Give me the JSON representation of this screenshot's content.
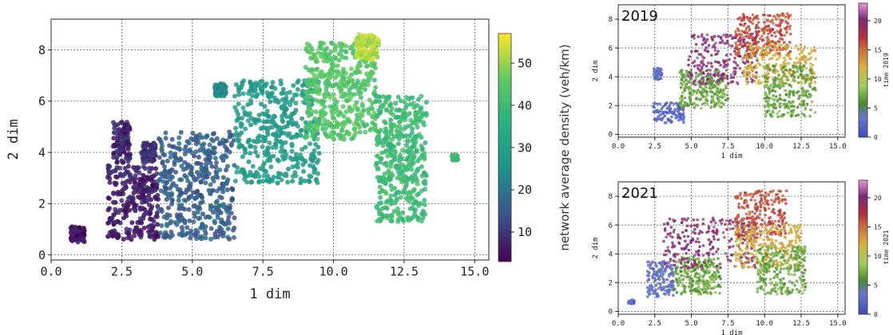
{
  "chart_data": [
    {
      "type": "scatter",
      "xlabel": "1 dim",
      "ylabel": "2 dim",
      "xlim": [
        0.0,
        15.5
      ],
      "ylim": [
        -0.2,
        9.2
      ],
      "xticks": [
        "0.0",
        "2.5",
        "5.0",
        "7.5",
        "10.0",
        "12.5",
        "15.0"
      ],
      "yticks": [
        "0",
        "2",
        "4",
        "6",
        "8"
      ],
      "grid": true,
      "colorbar": {
        "label": "network average density (veh/km)",
        "range": [
          3,
          57
        ],
        "ticks": [
          "10",
          "20",
          "30",
          "40",
          "50"
        ],
        "colormap": "viridis"
      },
      "clusters": [
        {
          "x": [
            0.7,
            1.2
          ],
          "y": [
            0.5,
            1.1
          ],
          "value": 5
        },
        {
          "x": [
            2.0,
            3.8
          ],
          "y": [
            0.6,
            3.5
          ],
          "value": 7
        },
        {
          "x": [
            2.2,
            2.8
          ],
          "y": [
            3.6,
            5.2
          ],
          "value": 8
        },
        {
          "x": [
            3.2,
            3.7
          ],
          "y": [
            3.6,
            4.4
          ],
          "value": 9
        },
        {
          "x": [
            3.8,
            6.5
          ],
          "y": [
            0.6,
            4.8
          ],
          "value": 16
        },
        {
          "x": [
            5.8,
            6.2
          ],
          "y": [
            6.2,
            6.7
          ],
          "value": 24
        },
        {
          "x": [
            6.5,
            9.5
          ],
          "y": [
            2.8,
            6.8
          ],
          "value": 28
        },
        {
          "x": [
            9.0,
            11.5
          ],
          "y": [
            4.5,
            8.3
          ],
          "value": 44
        },
        {
          "x": [
            10.8,
            11.6
          ],
          "y": [
            7.6,
            8.6
          ],
          "value": 52
        },
        {
          "x": [
            11.5,
            13.3
          ],
          "y": [
            1.3,
            6.2
          ],
          "value": 40
        },
        {
          "x": [
            14.2,
            14.4
          ],
          "y": [
            3.7,
            3.9
          ],
          "value": 40
        }
      ]
    },
    {
      "type": "scatter",
      "title": "2019",
      "xlabel": "1 dim",
      "ylabel": "2 dim",
      "xlim": [
        0.0,
        15.5
      ],
      "ylim": [
        -0.2,
        9.0
      ],
      "xticks": [
        "0.0",
        "2.5",
        "5.0",
        "7.5",
        "10.0",
        "12.5",
        "15.0"
      ],
      "yticks": [
        "0",
        "2",
        "4",
        "6",
        "8"
      ],
      "grid": true,
      "colorbar": {
        "label": "time 2019",
        "range": [
          0,
          23
        ],
        "ticks": [
          "0",
          "5",
          "10",
          "15",
          "20"
        ]
      },
      "clusters": [
        {
          "x": [
            2.4,
            4.5
          ],
          "y": [
            0.8,
            2.2
          ],
          "value": 2
        },
        {
          "x": [
            2.4,
            3.0
          ],
          "y": [
            3.8,
            4.6
          ],
          "value": 3
        },
        {
          "x": [
            4.2,
            7.5
          ],
          "y": [
            1.8,
            4.5
          ],
          "value": 7
        },
        {
          "x": [
            4.8,
            9.5
          ],
          "y": [
            3.5,
            7.0
          ],
          "value": 20
        },
        {
          "x": [
            8.0,
            11.8
          ],
          "y": [
            5.5,
            8.4
          ],
          "value": 16
        },
        {
          "x": [
            8.5,
            13.5
          ],
          "y": [
            3.5,
            6.3
          ],
          "value": 12
        },
        {
          "x": [
            10.0,
            13.5
          ],
          "y": [
            1.2,
            4.8
          ],
          "value": 7
        }
      ]
    },
    {
      "type": "scatter",
      "title": "2021",
      "xlabel": "1 dim",
      "ylabel": "2 dim",
      "xlim": [
        0.0,
        15.5
      ],
      "ylim": [
        -0.2,
        9.0
      ],
      "xticks": [
        "0.0",
        "2.5",
        "5.0",
        "7.5",
        "10.0",
        "12.5",
        "15.0"
      ],
      "yticks": [
        "0",
        "2",
        "4",
        "6",
        "8"
      ],
      "grid": true,
      "colorbar": {
        "label": "time 2021",
        "range": [
          0,
          23
        ],
        "ticks": [
          "0",
          "5",
          "10",
          "15",
          "20"
        ]
      },
      "clusters": [
        {
          "x": [
            0.7,
            1.1
          ],
          "y": [
            0.5,
            0.8
          ],
          "value": 2
        },
        {
          "x": [
            2.0,
            3.8
          ],
          "y": [
            1.0,
            3.5
          ],
          "value": 3
        },
        {
          "x": [
            3.8,
            7.0
          ],
          "y": [
            1.2,
            3.8
          ],
          "value": 7
        },
        {
          "x": [
            3.0,
            9.5
          ],
          "y": [
            3.0,
            6.5
          ],
          "value": 20
        },
        {
          "x": [
            8.0,
            11.5
          ],
          "y": [
            5.0,
            8.4
          ],
          "value": 16
        },
        {
          "x": [
            8.0,
            12.5
          ],
          "y": [
            3.0,
            6.0
          ],
          "value": 12
        },
        {
          "x": [
            9.5,
            12.8
          ],
          "y": [
            1.2,
            4.5
          ],
          "value": 7
        }
      ]
    }
  ]
}
